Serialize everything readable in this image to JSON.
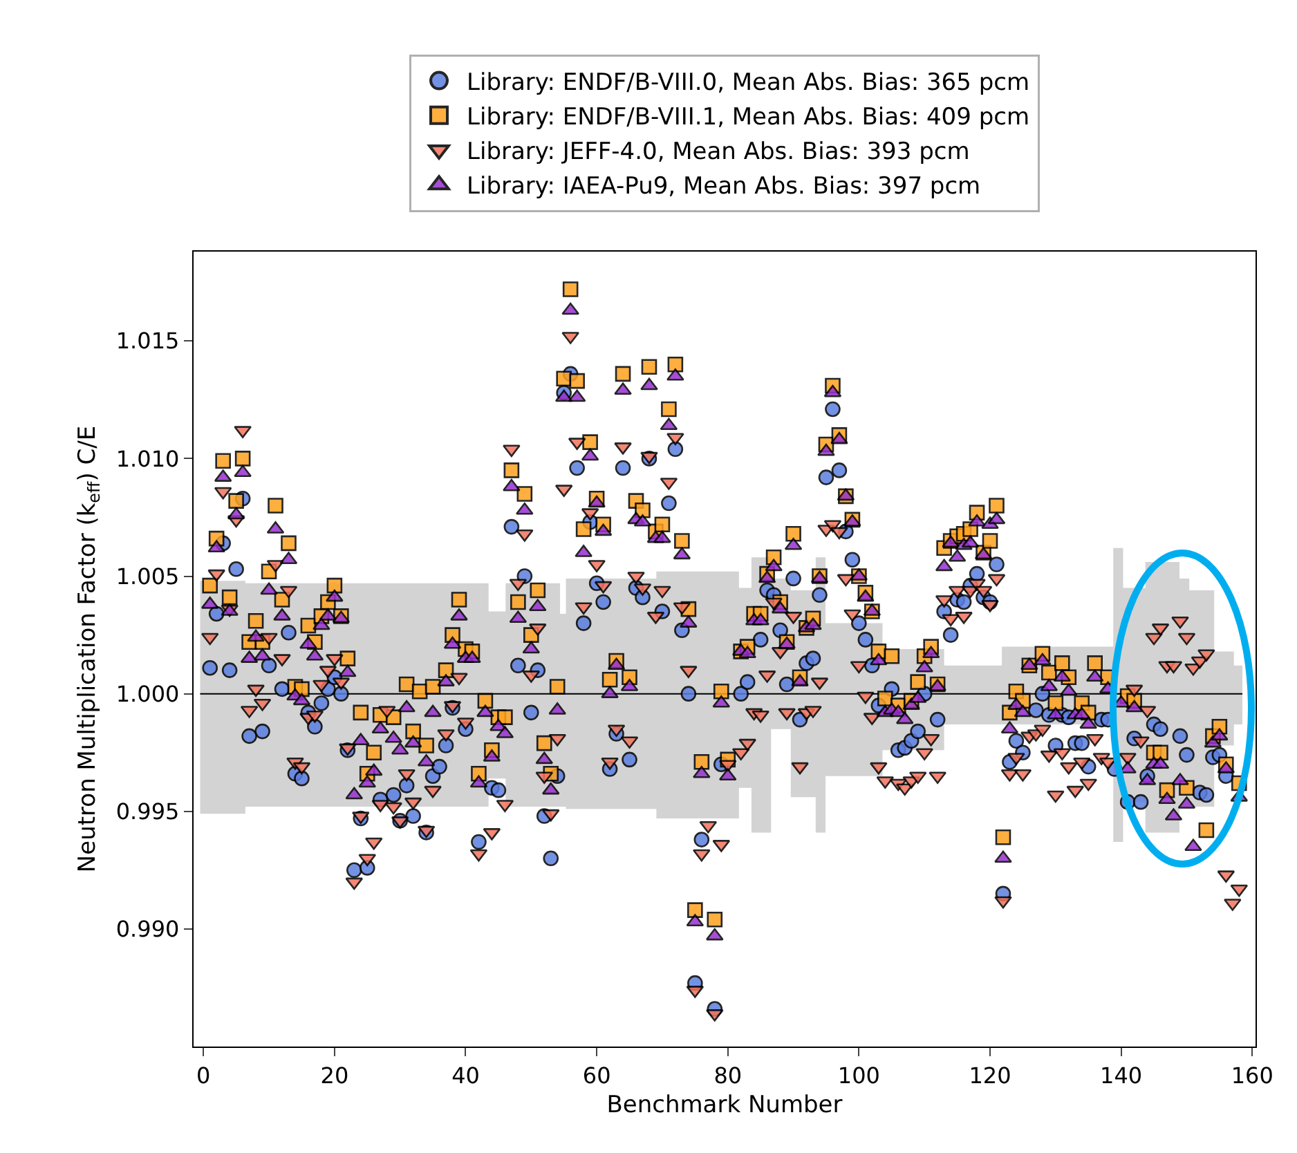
{
  "chart_data": {
    "type": "scatter",
    "xlabel": "Benchmark Number",
    "ylabel": "Neutron Multiplication Factor (k$_{eff}$) C/E",
    "xlim": [
      -1.5,
      160.5
    ],
    "xticks": [
      0,
      20,
      40,
      60,
      80,
      100,
      120,
      140,
      160
    ],
    "ylim": [
      0.985,
      1.0188
    ],
    "yticks": [
      {
        "value": 0.99,
        "label": "0.990"
      },
      {
        "value": 0.995,
        "label": "0.995"
      },
      {
        "value": 1.0,
        "label": "1.000"
      },
      {
        "value": 1.005,
        "label": "1.005"
      },
      {
        "value": 1.01,
        "label": "1.010"
      },
      {
        "value": 1.015,
        "label": "1.015"
      }
    ],
    "legend": "top",
    "series": [
      {
        "type": "step",
        "color": "#000000",
        "values": [
          1,
          1,
          1,
          1,
          1,
          1,
          1,
          1,
          1,
          1,
          1,
          1,
          1,
          1,
          1,
          1,
          1,
          1,
          1,
          1,
          1,
          1,
          1,
          1
        ],
        "x": [
          -0.5,
          6.4,
          43.5,
          46.1,
          54.4,
          55.3,
          69.1,
          81.7,
          83.6,
          86.6,
          89.6,
          93.4,
          94.9,
          103.6,
          113.0,
          121.8,
          138.8,
          140.3,
          143.7,
          148.9,
          150.4,
          154.2,
          157.2,
          158.5
        ],
        "lower": [
          0.9949,
          0.9952,
          0.9964,
          0.9952,
          0.9952,
          0.9951,
          0.9947,
          0.996,
          0.9941,
          0.9985,
          0.9956,
          0.9941,
          0.9965,
          0.9976,
          0.9987,
          0.9987,
          0.9937,
          0.9954,
          0.9941,
          0.9952,
          0.9952,
          0.9978,
          0.9987,
          0.9987
        ],
        "upper": [
          1.0048,
          1.0047,
          1.0035,
          1.0047,
          1.0034,
          1.0049,
          1.0052,
          1.0045,
          1.0058,
          1.0049,
          1.0044,
          1.0058,
          1.003,
          1.0019,
          1.0012,
          1.002,
          1.0062,
          1.0045,
          1.0056,
          1.0049,
          1.0044,
          1.0018,
          1.0012,
          1.0012
        ]
      },
      {
        "name": "Library: ENDF/B-VIII.0, Mean Abs. Bias: 365 pcm",
        "color": "#5b7fe0",
        "marker": "circle",
        "x": [
          1,
          2,
          3,
          4,
          5,
          6,
          7,
          9,
          10,
          12,
          13,
          14,
          15,
          16,
          17,
          18,
          19,
          20,
          21,
          22,
          23,
          24,
          25,
          27,
          29,
          30,
          31,
          32,
          34,
          35,
          36,
          37,
          38,
          40,
          42,
          44,
          45,
          47,
          48,
          49,
          50,
          51,
          52,
          53,
          54,
          55,
          56,
          57,
          58,
          59,
          60,
          61,
          62,
          63,
          64,
          65,
          66,
          67,
          68,
          70,
          71,
          72,
          73,
          74,
          75,
          76,
          78,
          79,
          82,
          83,
          85,
          86,
          87,
          88,
          89,
          90,
          91,
          92,
          93,
          94,
          95,
          96,
          97,
          98,
          99,
          100,
          101,
          102,
          103,
          105,
          106,
          107,
          108,
          109,
          110,
          112,
          113,
          114,
          115,
          116,
          117,
          118,
          119,
          120,
          121,
          122,
          123,
          124,
          125,
          127,
          128,
          129,
          130,
          131,
          132,
          133,
          134,
          135,
          137,
          138,
          139,
          141,
          142,
          143,
          144,
          145,
          146,
          149,
          150,
          152,
          153,
          154,
          155,
          156
        ],
        "values": [
          1.0011,
          1.0034,
          1.0064,
          1.001,
          1.0053,
          1.0083,
          0.9982,
          0.9984,
          1.0012,
          1.0002,
          1.0026,
          0.9966,
          0.9964,
          0.9992,
          0.9986,
          0.9996,
          1.0002,
          1.0007,
          1.0,
          0.9976,
          0.9925,
          0.9947,
          0.9926,
          0.9955,
          0.9957,
          0.9946,
          0.9961,
          0.9948,
          0.9941,
          0.9965,
          0.9969,
          0.9978,
          0.9994,
          0.9985,
          0.9937,
          0.996,
          0.9959,
          1.0071,
          1.0012,
          1.005,
          0.9992,
          1.001,
          0.9948,
          0.993,
          0.9965,
          1.0128,
          1.0136,
          1.0096,
          1.003,
          1.0073,
          1.0047,
          1.0039,
          0.9968,
          0.9983,
          1.0096,
          0.9972,
          1.0045,
          1.0041,
          1.01,
          1.0035,
          1.0081,
          1.0104,
          1.0027,
          1.0,
          0.9877,
          0.9938,
          0.9866,
          0.997,
          1.0,
          1.0005,
          1.0023,
          1.0044,
          1.0042,
          1.0027,
          1.0004,
          1.0049,
          0.9989,
          1.0013,
          1.0015,
          1.0042,
          1.0092,
          1.0121,
          1.0095,
          1.0069,
          1.0057,
          1.003,
          1.0023,
          1.0012,
          0.9995,
          1.0002,
          0.9976,
          0.9977,
          0.998,
          0.9984,
          1.0,
          0.9989,
          1.0035,
          1.0025,
          1.004,
          1.0039,
          1.0046,
          1.0051,
          1.0041,
          1.0039,
          1.0055,
          0.9915,
          0.9971,
          0.998,
          0.9975,
          0.9993,
          1.0,
          0.9991,
          0.9978,
          0.9991,
          0.999,
          0.9979,
          0.9979,
          0.9969,
          0.9989,
          0.9989,
          0.9968,
          0.9954,
          0.9981,
          0.9954,
          0.9965,
          0.9987,
          0.9985,
          0.9982,
          0.9974,
          0.9958,
          0.9957,
          0.9973,
          0.9974,
          0.9965
        ]
      },
      {
        "name": "Library: ENDF/B-VIII.1, Mean Abs. Bias: 409 pcm",
        "color": "#ffa21f",
        "marker": "square",
        "x": [
          1,
          2,
          3,
          4,
          5,
          6,
          7,
          8,
          9,
          10,
          11,
          12,
          13,
          14,
          15,
          16,
          17,
          18,
          19,
          20,
          21,
          22,
          24,
          25,
          26,
          27,
          29,
          31,
          32,
          33,
          34,
          35,
          37,
          38,
          39,
          40,
          41,
          42,
          43,
          44,
          45,
          46,
          47,
          48,
          49,
          50,
          51,
          52,
          53,
          54,
          55,
          56,
          57,
          58,
          59,
          60,
          61,
          62,
          63,
          64,
          65,
          66,
          67,
          68,
          69,
          70,
          71,
          72,
          73,
          74,
          75,
          76,
          78,
          79,
          80,
          82,
          83,
          84,
          85,
          86,
          87,
          88,
          89,
          90,
          91,
          92,
          93,
          94,
          95,
          96,
          97,
          98,
          99,
          100,
          101,
          102,
          103,
          104,
          105,
          106,
          108,
          109,
          110,
          111,
          112,
          113,
          114,
          115,
          116,
          117,
          118,
          119,
          120,
          121,
          122,
          123,
          124,
          125,
          126,
          128,
          129,
          130,
          131,
          132,
          134,
          135,
          136,
          138,
          141,
          142,
          145,
          146,
          147,
          150,
          153,
          154,
          155,
          156,
          158
        ],
        "values": [
          1.0046,
          1.0066,
          1.0099,
          1.0041,
          1.0082,
          1.01,
          1.0022,
          1.0031,
          1.0022,
          1.0052,
          1.008,
          1.004,
          1.0064,
          1.0003,
          1.0002,
          1.0029,
          1.0022,
          1.0033,
          1.0039,
          1.0046,
          1.0033,
          1.0015,
          0.9992,
          0.9966,
          0.9975,
          0.9991,
          0.999,
          1.0004,
          0.9984,
          1.0001,
          0.9978,
          1.0003,
          1.001,
          1.0025,
          1.004,
          1.0019,
          1.0018,
          0.9966,
          0.9997,
          0.9976,
          0.999,
          0.999,
          1.0095,
          1.0039,
          1.0085,
          1.0025,
          1.0044,
          0.9979,
          0.9966,
          1.0003,
          1.0134,
          1.0172,
          1.0133,
          1.007,
          1.0107,
          1.0083,
          1.0072,
          1.0006,
          1.0014,
          1.0136,
          1.0007,
          1.0082,
          1.0078,
          1.0139,
          1.0069,
          1.0072,
          1.0121,
          1.014,
          1.0065,
          1.0036,
          0.9908,
          0.9971,
          0.9904,
          1.0001,
          0.9972,
          1.0018,
          1.002,
          1.0034,
          1.0034,
          1.0051,
          1.0058,
          1.0039,
          1.0022,
          1.0068,
          1.0007,
          1.0028,
          1.0032,
          1.005,
          1.0106,
          1.0131,
          1.011,
          1.0084,
          1.0074,
          1.005,
          1.0043,
          1.0035,
          1.0018,
          0.9998,
          1.0016,
          0.9995,
          0.9997,
          1.0005,
          1.0016,
          1.002,
          1.0004,
          1.0062,
          1.0065,
          1.0067,
          1.0068,
          1.007,
          1.0077,
          1.006,
          1.0065,
          1.008,
          0.9939,
          0.9992,
          1.0001,
          0.9997,
          1.0012,
          1.0017,
          1.0009,
          0.9996,
          1.0013,
          1.0007,
          0.9996,
          0.9992,
          1.0013,
          1.0007,
          0.9999,
          0.9997,
          0.9975,
          0.9975,
          0.9959,
          0.996,
          0.9942,
          0.9982,
          0.9986,
          0.997,
          0.9962
        ]
      },
      {
        "name": "Library: JEFF-4.0, Mean Abs. Bias: 393 pcm",
        "color": "#f4735c",
        "marker": "triangle-down",
        "x": [
          1,
          2,
          3,
          4,
          5,
          6,
          7,
          8,
          9,
          10,
          11,
          12,
          13,
          14,
          15,
          16,
          17,
          18,
          19,
          20,
          21,
          22,
          23,
          24,
          25,
          26,
          27,
          28,
          29,
          30,
          31,
          32,
          34,
          35,
          37,
          38,
          39,
          40,
          42,
          44,
          46,
          47,
          48,
          49,
          50,
          51,
          52,
          53,
          54,
          55,
          56,
          57,
          58,
          59,
          60,
          61,
          62,
          63,
          64,
          65,
          66,
          67,
          68,
          69,
          70,
          71,
          72,
          73,
          74,
          75,
          76,
          77,
          78,
          79,
          80,
          82,
          83,
          84,
          85,
          86,
          87,
          88,
          89,
          90,
          91,
          92,
          93,
          94,
          95,
          96,
          97,
          98,
          99,
          100,
          101,
          102,
          103,
          104,
          106,
          107,
          108,
          109,
          110,
          111,
          112,
          113,
          114,
          115,
          116,
          117,
          118,
          119,
          120,
          121,
          122,
          123,
          124,
          125,
          126,
          127,
          128,
          129,
          130,
          131,
          132,
          133,
          134,
          135,
          136,
          137,
          138,
          141,
          142,
          143,
          144,
          145,
          146,
          147,
          148,
          149,
          150,
          151,
          152,
          153,
          156,
          157,
          158
        ],
        "values": [
          1.0024,
          1.0051,
          1.0086,
          1.0036,
          1.0074,
          1.0112,
          0.9993,
          1.0002,
          0.9996,
          1.0024,
          1.0055,
          1.0015,
          1.0044,
          0.9971,
          0.9969,
          0.999,
          0.9991,
          1.0004,
          1.001,
          1.0015,
          1.0005,
          0.9977,
          0.992,
          0.9948,
          0.993,
          0.9937,
          0.9953,
          0.9993,
          0.9952,
          0.9946,
          0.9966,
          0.9954,
          0.9942,
          0.9959,
          0.9983,
          0.9995,
          1.0007,
          0.9988,
          0.9932,
          0.9941,
          0.9953,
          1.0104,
          1.0047,
          1.0068,
          1.0008,
          1.0028,
          0.9965,
          0.9949,
          0.9981,
          1.0087,
          1.0152,
          1.0107,
          1.0037,
          1.0077,
          1.0055,
          1.0046,
          0.9971,
          0.9985,
          1.0105,
          0.998,
          1.005,
          1.0045,
          1.0101,
          1.0033,
          1.0044,
          1.009,
          1.0109,
          1.0037,
          1.001,
          0.9874,
          0.9932,
          0.9944,
          0.9864,
          0.9936,
          0.997,
          0.9975,
          0.9979,
          0.9992,
          0.9991,
          1.0008,
          1.0039,
          1.0018,
          0.9992,
          1.0033,
          0.9969,
          0.9992,
          0.9993,
          1.0005,
          1.007,
          1.0072,
          1.0069,
          1.0049,
          1.0034,
          1.0012,
          0.9999,
          0.999,
          0.9969,
          0.9963,
          0.9962,
          0.996,
          0.9963,
          0.9965,
          0.9975,
          0.9981,
          0.9965,
          1.004,
          1.0032,
          1.0044,
          1.0033,
          1.0044,
          1.0047,
          1.0044,
          1.0038,
          1.0049,
          0.9912,
          0.9966,
          0.9973,
          0.9966,
          0.9982,
          0.9983,
          0.9985,
          0.9974,
          0.9957,
          0.9975,
          0.9969,
          0.9959,
          0.9971,
          0.9962,
          0.9981,
          0.9973,
          0.9971,
          0.9973,
          1.0002,
          0.998,
          0.9993,
          1.0024,
          1.0028,
          1.0012,
          1.0012,
          1.0031,
          1.0024,
          1.0011,
          1.0014,
          1.0017,
          0.9923,
          0.9911,
          0.9917
        ]
      },
      {
        "name": "Library: IAEA-Pu9, Mean Abs. Bias: 397 pcm",
        "color": "#9a2fd2",
        "marker": "triangle",
        "x": [
          1,
          2,
          3,
          4,
          5,
          6,
          7,
          8,
          9,
          10,
          11,
          12,
          13,
          14,
          15,
          16,
          17,
          18,
          19,
          20,
          21,
          22,
          23,
          24,
          25,
          26,
          27,
          29,
          30,
          31,
          32,
          34,
          35,
          37,
          38,
          39,
          40,
          41,
          42,
          43,
          44,
          45,
          46,
          47,
          48,
          49,
          50,
          51,
          52,
          53,
          54,
          55,
          56,
          57,
          58,
          59,
          60,
          61,
          62,
          63,
          64,
          65,
          66,
          67,
          68,
          69,
          70,
          71,
          72,
          73,
          74,
          75,
          76,
          78,
          79,
          80,
          82,
          83,
          84,
          85,
          86,
          87,
          88,
          89,
          90,
          91,
          92,
          93,
          94,
          95,
          96,
          97,
          98,
          99,
          100,
          101,
          102,
          103,
          104,
          105,
          106,
          107,
          108,
          109,
          110,
          111,
          112,
          113,
          114,
          115,
          116,
          117,
          118,
          119,
          120,
          121,
          122,
          123,
          124,
          125,
          126,
          128,
          129,
          130,
          131,
          132,
          133,
          134,
          135,
          136,
          138,
          140,
          141,
          142,
          144,
          145,
          146,
          147,
          148,
          149,
          150,
          151,
          154,
          155,
          156,
          158
        ],
        "values": [
          1.0038,
          1.0062,
          1.0092,
          1.0035,
          1.0076,
          1.0094,
          1.0015,
          1.0024,
          1.0016,
          1.0044,
          1.007,
          1.0033,
          1.0057,
          0.9999,
          0.9997,
          1.0021,
          1.0016,
          1.0029,
          1.0033,
          1.0041,
          1.0032,
          1.0009,
          0.9957,
          0.998,
          0.9962,
          0.9967,
          0.9985,
          0.9981,
          0.9976,
          0.9994,
          0.9979,
          0.9971,
          0.9992,
          1.0005,
          1.0021,
          1.0033,
          1.0015,
          1.0015,
          0.9962,
          0.9992,
          0.9973,
          0.9986,
          0.9983,
          1.0088,
          1.0032,
          1.0078,
          1.0019,
          1.0037,
          0.9972,
          0.9959,
          0.9993,
          1.0126,
          1.0163,
          1.0126,
          1.006,
          1.0101,
          1.0081,
          1.0069,
          1.0,
          1.0012,
          1.0129,
          1.0003,
          1.0074,
          1.0073,
          1.0131,
          1.0066,
          1.0066,
          1.0114,
          1.0135,
          1.0059,
          1.003,
          0.9903,
          0.9966,
          0.9897,
          0.9996,
          0.9965,
          1.0018,
          1.0017,
          1.0031,
          1.0031,
          1.0049,
          1.0054,
          1.0036,
          1.0021,
          1.0063,
          1.0005,
          1.0028,
          1.0029,
          1.0049,
          1.0103,
          1.0128,
          1.0108,
          1.0084,
          1.0073,
          1.005,
          1.0041,
          1.0035,
          1.0014,
          0.9992,
          0.9993,
          0.9992,
          0.9989,
          0.9995,
          0.9998,
          1.0011,
          1.0017,
          1.0003,
          1.0054,
          1.0064,
          1.0058,
          1.0063,
          1.0064,
          1.0073,
          1.0059,
          1.0072,
          1.0074,
          0.993,
          0.9985,
          0.9995,
          0.9992,
          1.0012,
          1.0014,
          1.0003,
          0.9991,
          1.0007,
          1.0001,
          0.9991,
          0.9991,
          0.9987,
          1.0007,
          1.0002,
          0.9996,
          0.9968,
          0.9994,
          0.9963,
          0.997,
          0.997,
          0.9955,
          0.9948,
          0.9963,
          0.9953,
          0.9935,
          0.9979,
          0.9982,
          0.9968,
          0.9956
        ]
      }
    ]
  }
}
